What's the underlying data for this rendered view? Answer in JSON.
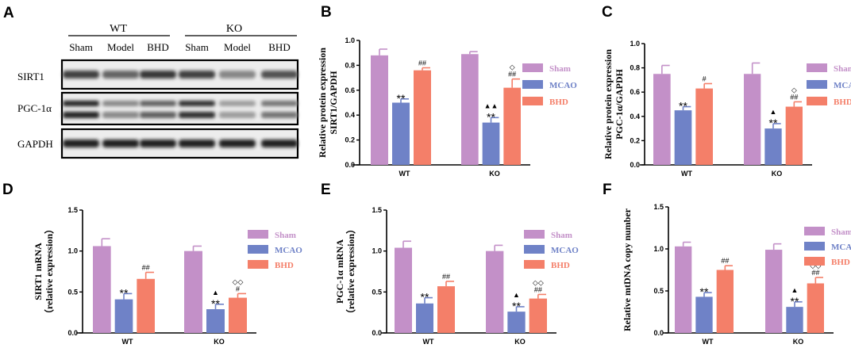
{
  "colors": {
    "sham": "#c390c8",
    "mcao": "#6f82c7",
    "bhd": "#f47f69",
    "axis": "#000000"
  },
  "western_blot": {
    "panel_label": "A",
    "groups": [
      "WT",
      "KO"
    ],
    "lanes": [
      "Sham",
      "Model",
      "BHD",
      "Sham",
      "Model",
      "BHD"
    ],
    "proteins": [
      {
        "name": "SIRT1",
        "intensity": [
          0.8,
          0.62,
          0.85,
          0.8,
          0.45,
          0.72
        ]
      },
      {
        "name": "PGC-1α",
        "intensity": [
          0.95,
          0.45,
          0.65,
          0.9,
          0.35,
          0.55
        ]
      },
      {
        "name": "GAPDH",
        "intensity": [
          0.95,
          0.95,
          0.95,
          0.95,
          0.95,
          0.95
        ]
      }
    ]
  },
  "chart_data": [
    {
      "panel_label": "B",
      "type": "bar",
      "ylabel_lines": [
        "Relative protein expression",
        "SIRT1/GAPDH"
      ],
      "categories": [
        "WT",
        "KO"
      ],
      "ylim": [
        0,
        1.0
      ],
      "yticks": [
        0,
        0.2,
        0.4,
        0.6,
        0.8,
        1.0
      ],
      "ytick_labels": [
        "0.0",
        "0.2",
        "0.4",
        "0.6",
        "0.8",
        "1.0"
      ],
      "series": [
        {
          "name": "Sham",
          "values": [
            0.88,
            0.89
          ],
          "errors": [
            0.05,
            0.02
          ],
          "annotations": [
            [],
            []
          ]
        },
        {
          "name": "MCAO",
          "values": [
            0.5,
            0.34
          ],
          "errors": [
            0.03,
            0.04
          ],
          "annotations": [
            [
              "**"
            ],
            [
              "**",
              "▲▲"
            ]
          ]
        },
        {
          "name": "BHD",
          "values": [
            0.76,
            0.62
          ],
          "errors": [
            0.02,
            0.07
          ],
          "annotations": [
            [
              "##"
            ],
            [
              "##",
              "◇"
            ]
          ]
        }
      ]
    },
    {
      "panel_label": "C",
      "type": "bar",
      "ylabel_lines": [
        "Relative protein expression",
        "PGC-1α/GAPDH"
      ],
      "categories": [
        "WT",
        "KO"
      ],
      "ylim": [
        0,
        1.0
      ],
      "yticks": [
        0,
        0.2,
        0.4,
        0.6,
        0.8,
        1.0
      ],
      "ytick_labels": [
        "0.0",
        "0.2",
        "0.4",
        "0.6",
        "0.8",
        "1.0"
      ],
      "series": [
        {
          "name": "Sham",
          "values": [
            0.75,
            0.75
          ],
          "errors": [
            0.07,
            0.09
          ],
          "annotations": [
            [],
            []
          ]
        },
        {
          "name": "MCAO",
          "values": [
            0.45,
            0.3
          ],
          "errors": [
            0.03,
            0.04
          ],
          "annotations": [
            [
              "**"
            ],
            [
              "**",
              "▲"
            ]
          ]
        },
        {
          "name": "BHD",
          "values": [
            0.63,
            0.48
          ],
          "errors": [
            0.04,
            0.04
          ],
          "annotations": [
            [
              "#"
            ],
            [
              "##",
              "◇"
            ]
          ]
        }
      ]
    },
    {
      "panel_label": "D",
      "type": "bar",
      "ylabel_lines": [
        "SIRT1 mRNA",
        "（relative expression）"
      ],
      "categories": [
        "WT",
        "KO"
      ],
      "ylim": [
        0,
        1.5
      ],
      "yticks": [
        0,
        0.5,
        1.0,
        1.5
      ],
      "ytick_labels": [
        "0.0",
        "0.5",
        "1.0",
        "1.5"
      ],
      "series": [
        {
          "name": "Sham",
          "values": [
            1.06,
            1.0
          ],
          "errors": [
            0.09,
            0.06
          ],
          "annotations": [
            [],
            []
          ]
        },
        {
          "name": "MCAO",
          "values": [
            0.41,
            0.29
          ],
          "errors": [
            0.07,
            0.06
          ],
          "annotations": [
            [
              "**"
            ],
            [
              "**",
              "▲"
            ]
          ]
        },
        {
          "name": "BHD",
          "values": [
            0.66,
            0.43
          ],
          "errors": [
            0.08,
            0.05
          ],
          "annotations": [
            [
              "##"
            ],
            [
              "#",
              "◇◇"
            ]
          ]
        }
      ]
    },
    {
      "panel_label": "E",
      "type": "bar",
      "ylabel_lines": [
        "PGC-1α mRNA",
        "（relative expression）"
      ],
      "categories": [
        "WT",
        "KO"
      ],
      "ylim": [
        0,
        1.5
      ],
      "yticks": [
        0,
        0.5,
        1.0,
        1.5
      ],
      "ytick_labels": [
        "0.0",
        "0.5",
        "1.0",
        "1.5"
      ],
      "series": [
        {
          "name": "Sham",
          "values": [
            1.04,
            1.0
          ],
          "errors": [
            0.08,
            0.07
          ],
          "annotations": [
            [],
            []
          ]
        },
        {
          "name": "MCAO",
          "values": [
            0.36,
            0.26
          ],
          "errors": [
            0.07,
            0.06
          ],
          "annotations": [
            [
              "**"
            ],
            [
              "**",
              "▲"
            ]
          ]
        },
        {
          "name": "BHD",
          "values": [
            0.57,
            0.42
          ],
          "errors": [
            0.06,
            0.05
          ],
          "annotations": [
            [
              "##"
            ],
            [
              "##",
              "◇◇"
            ]
          ]
        }
      ]
    },
    {
      "panel_label": "F",
      "type": "bar",
      "ylabel_lines": [
        "Relative mtDNA copy number"
      ],
      "categories": [
        "WT",
        "KO"
      ],
      "ylim": [
        0,
        1.5
      ],
      "yticks": [
        0,
        0.5,
        1.0,
        1.5
      ],
      "ytick_labels": [
        "0.0",
        "0.5",
        "1.0",
        "1.5"
      ],
      "series": [
        {
          "name": "Sham",
          "values": [
            1.03,
            0.99
          ],
          "errors": [
            0.05,
            0.07
          ],
          "annotations": [
            [],
            []
          ]
        },
        {
          "name": "MCAO",
          "values": [
            0.43,
            0.31
          ],
          "errors": [
            0.05,
            0.06
          ],
          "annotations": [
            [
              "**"
            ],
            [
              "**",
              "▲"
            ]
          ]
        },
        {
          "name": "BHD",
          "values": [
            0.75,
            0.59
          ],
          "errors": [
            0.05,
            0.07
          ],
          "annotations": [
            [
              "##"
            ],
            [
              "##",
              "◇◇"
            ]
          ]
        }
      ]
    }
  ]
}
